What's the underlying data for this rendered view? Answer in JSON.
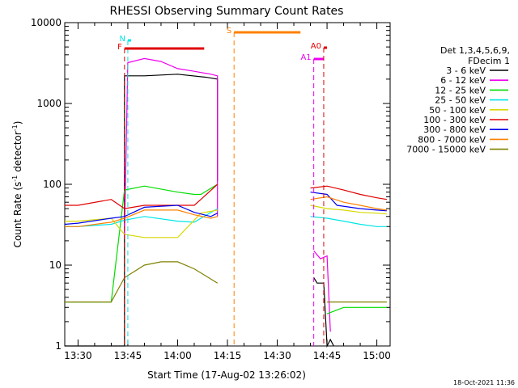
{
  "chart_data": {
    "type": "line",
    "title": "RHESSI Observing Summary Count Rates",
    "xlabel": "Start Time (17-Aug-02 13:26:02)",
    "ylabel_main": "Count Rate (s",
    "ylabel_sup": "-1",
    "ylabel_mid": " detector",
    "ylabel_sup2": "-1",
    "ylabel_end": ")",
    "y_scale": "log",
    "ylim": [
      1,
      10000
    ],
    "xlim": [
      "13:26",
      "15:04"
    ],
    "x_ticks": [
      "13:30",
      "13:45",
      "14:00",
      "14:15",
      "14:30",
      "14:45",
      "15:00"
    ],
    "y_ticks": [
      "1",
      "10",
      "100",
      "1000",
      "10000"
    ],
    "footer_date": "18-Oct-2021 11:36",
    "legend": {
      "header1": "Det 1,3,4,5,6,9,",
      "header2": "FDecim 1",
      "entries": [
        {
          "label": "3 - 6 keV",
          "color": "#000000"
        },
        {
          "label": "6 - 12 keV",
          "color": "#ee00ee"
        },
        {
          "label": "12 - 25 keV",
          "color": "#00dd00"
        },
        {
          "label": "25 - 50 keV",
          "color": "#00e5e5"
        },
        {
          "label": "50 - 100 keV",
          "color": "#d8d800"
        },
        {
          "label": "100 - 300 keV",
          "color": "#e00000"
        },
        {
          "label": "300 - 800 keV",
          "color": "#0000ee"
        },
        {
          "label": "800 - 7000 keV",
          "color": "#ff8000"
        },
        {
          "label": "7000 - 15000 keV",
          "color": "#808000"
        }
      ]
    },
    "flags": [
      {
        "label": "N",
        "color": "#00e5e5",
        "start": "13:45",
        "end": "13:45"
      },
      {
        "label": "F",
        "color": "#e00000",
        "start": "13:44",
        "end": "14:08"
      },
      {
        "label": "S",
        "color": "#ff8000",
        "start": "14:17",
        "end": "14:37"
      },
      {
        "label": "A1",
        "color": "#ee00ee",
        "start": "14:41",
        "end": "14:44"
      },
      {
        "label": "A0",
        "color": "#e00000",
        "start": "14:44",
        "end": "14:45"
      }
    ],
    "series": [
      {
        "name": "3 - 6 keV",
        "color": "#000000",
        "x": [
          "13:26",
          "13:44",
          "13:44",
          "13:50",
          "14:00",
          "14:09",
          "14:12",
          "14:12"
        ],
        "y": [
          1,
          1,
          2200,
          2200,
          2300,
          2100,
          2000,
          110
        ]
      },
      {
        "name": "3 - 6 keV (post)",
        "color": "#000000",
        "x": [
          "14:41",
          "14:42",
          "14:44",
          "14:45",
          "14:46",
          "14:47"
        ],
        "y": [
          7,
          6,
          6,
          1,
          1.2,
          1
        ]
      },
      {
        "name": "6 - 12 keV",
        "color": "#ee00ee",
        "x": [
          "13:44",
          "13:45",
          "13:50",
          "13:55",
          "14:00",
          "14:05",
          "14:10",
          "14:12",
          "14:12"
        ],
        "y": [
          22,
          3200,
          3600,
          3300,
          2700,
          2500,
          2300,
          2200,
          40
        ]
      },
      {
        "name": "6 - 12 keV (post)",
        "color": "#ee00ee",
        "x": [
          "14:41",
          "14:43",
          "14:45",
          "14:46"
        ],
        "y": [
          15,
          12,
          13,
          1.5
        ]
      },
      {
        "name": "12 - 25 keV",
        "color": "#00dd00",
        "x": [
          "13:26",
          "13:30",
          "13:40",
          "13:44",
          "13:50",
          "14:00",
          "14:05",
          "14:07",
          "14:12"
        ],
        "y": [
          3.5,
          3.5,
          3.5,
          85,
          95,
          80,
          75,
          75,
          100
        ]
      },
      {
        "name": "25 - 50 keV",
        "color": "#00e5e5",
        "x": [
          "13:26",
          "13:30",
          "13:40",
          "13:44",
          "13:50",
          "14:00",
          "14:05",
          "14:07",
          "14:12"
        ],
        "y": [
          30,
          30,
          32,
          36,
          40,
          35,
          34,
          38,
          50
        ]
      },
      {
        "name": "50 - 100 keV",
        "color": "#d8d800",
        "x": [
          "13:26",
          "13:30",
          "13:40",
          "13:44",
          "13:50",
          "14:00",
          "14:07",
          "14:12"
        ],
        "y": [
          35,
          35,
          38,
          24,
          22,
          22,
          44,
          48
        ]
      },
      {
        "name": "100 - 300 keV",
        "color": "#e00000",
        "x": [
          "13:26",
          "13:30",
          "13:40",
          "13:44",
          "13:50",
          "14:00",
          "14:05",
          "14:07",
          "14:12"
        ],
        "y": [
          55,
          55,
          65,
          50,
          55,
          55,
          55,
          65,
          100
        ]
      },
      {
        "name": "300 - 800 keV",
        "color": "#0000ee",
        "x": [
          "13:26",
          "13:30",
          "13:40",
          "13:44",
          "13:50",
          "14:00",
          "14:05",
          "14:10",
          "14:12"
        ],
        "y": [
          32,
          33,
          38,
          40,
          52,
          55,
          45,
          40,
          44
        ]
      },
      {
        "name": "800 - 7000 keV",
        "color": "#ff8000",
        "x": [
          "13:26",
          "13:30",
          "13:40",
          "13:44",
          "13:50",
          "14:00",
          "14:05",
          "14:10",
          "14:12"
        ],
        "y": [
          30,
          30,
          34,
          38,
          48,
          48,
          42,
          38,
          40
        ]
      },
      {
        "name": "7000 - 15000 keV",
        "color": "#808000",
        "x": [
          "13:26",
          "13:30",
          "13:40",
          "13:44",
          "13:50",
          "13:55",
          "14:00",
          "14:05",
          "14:12"
        ],
        "y": [
          3.5,
          3.5,
          3.5,
          7,
          10,
          11,
          11,
          9,
          6
        ]
      },
      {
        "name": "100 - 300 keV (post)",
        "color": "#e00000",
        "x": [
          "14:40",
          "14:45",
          "14:50",
          "14:55",
          "15:00",
          "15:03"
        ],
        "y": [
          90,
          95,
          85,
          75,
          68,
          65
        ]
      },
      {
        "name": "300 - 800 keV (post)",
        "color": "#0000ee",
        "x": [
          "14:40",
          "14:45",
          "14:48",
          "14:55",
          "15:00",
          "15:03"
        ],
        "y": [
          80,
          75,
          55,
          50,
          48,
          47
        ]
      },
      {
        "name": "800 - 7000 keV (post)",
        "color": "#ff8000",
        "x": [
          "14:40",
          "14:45",
          "14:50",
          "14:55",
          "15:00",
          "15:03"
        ],
        "y": [
          65,
          70,
          60,
          55,
          50,
          48
        ]
      },
      {
        "name": "25 - 50 keV (post)",
        "color": "#00e5e5",
        "x": [
          "14:40",
          "14:45",
          "14:50",
          "14:55",
          "15:00",
          "15:03"
        ],
        "y": [
          40,
          38,
          35,
          32,
          30,
          30
        ]
      },
      {
        "name": "50 - 100 keV (post)",
        "color": "#d8d800",
        "x": [
          "14:40",
          "14:45",
          "14:50",
          "14:55",
          "15:00",
          "15:03"
        ],
        "y": [
          55,
          50,
          48,
          45,
          44,
          43
        ]
      },
      {
        "name": "12 - 25 keV (post)",
        "color": "#00dd00",
        "x": [
          "14:45",
          "14:50",
          "14:55",
          "15:00",
          "15:03"
        ],
        "y": [
          2.5,
          3,
          3,
          3,
          3
        ]
      },
      {
        "name": "7000 - 15000 keV (post)",
        "color": "#808000",
        "x": [
          "14:45",
          "14:50",
          "14:55",
          "15:00",
          "15:03"
        ],
        "y": [
          3.5,
          3.5,
          3.5,
          3.5,
          3.5
        ]
      }
    ]
  }
}
